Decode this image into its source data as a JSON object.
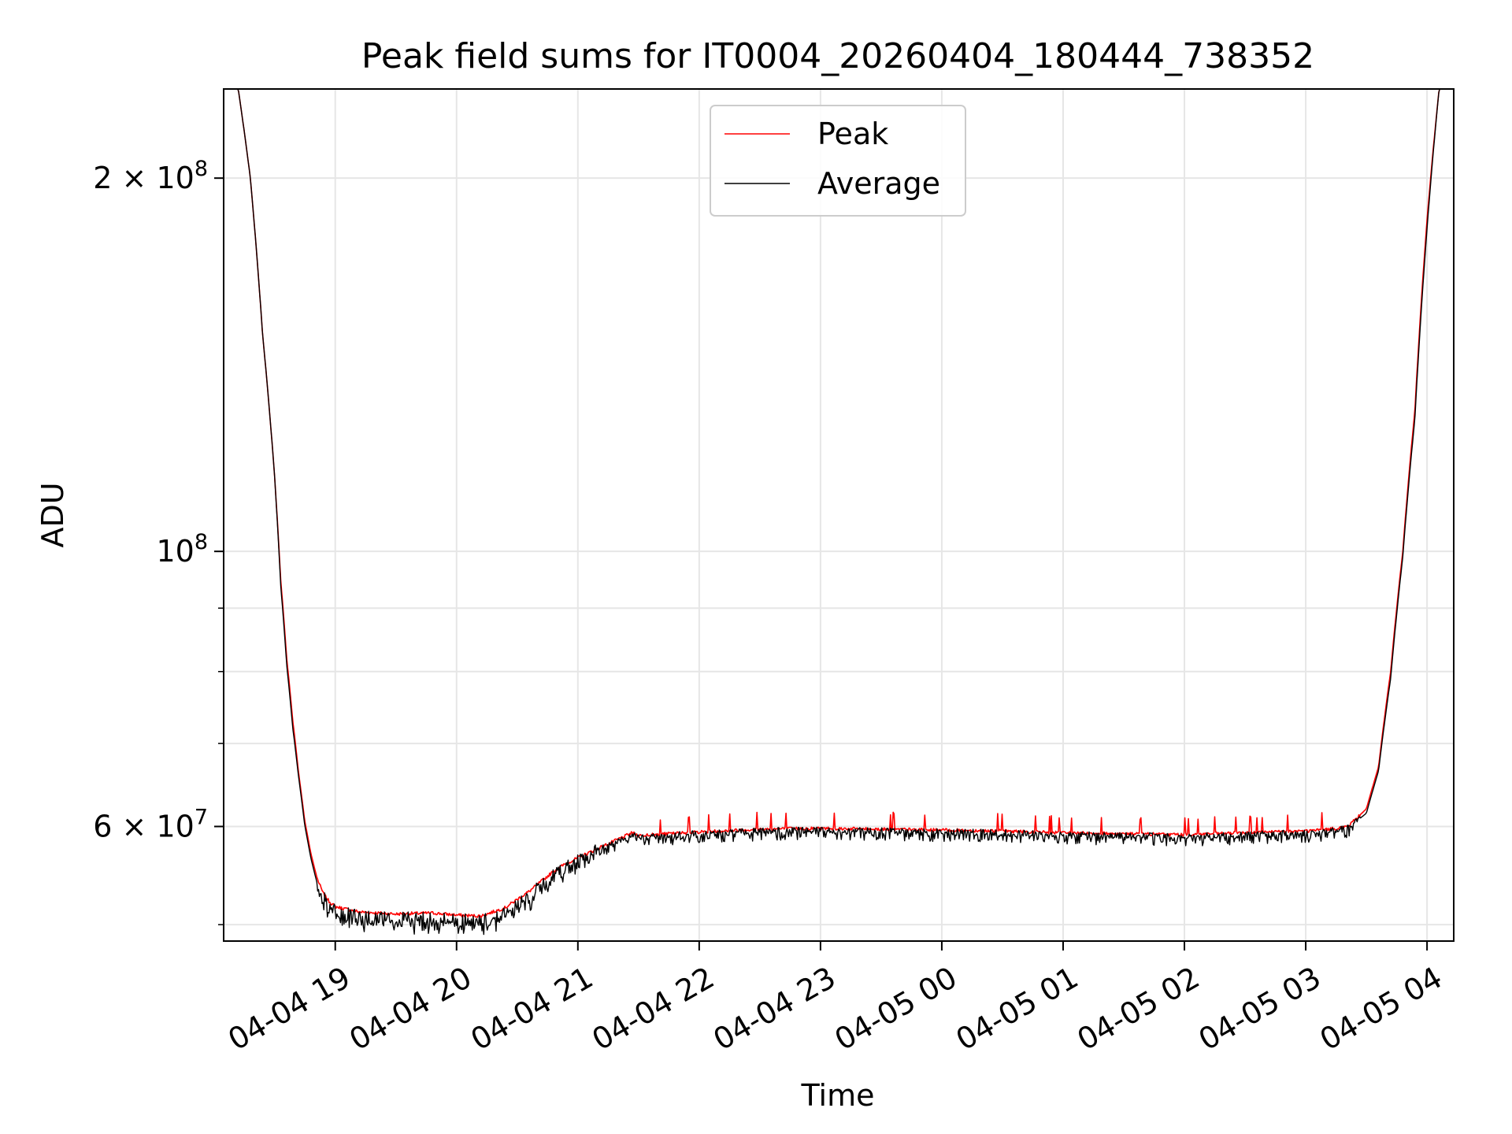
{
  "chart_data": {
    "type": "line",
    "title": "Peak field sums for IT0004_20260404_180444_738352",
    "xlabel": "Time",
    "ylabel": "ADU",
    "yscale": "log",
    "xlim_hours": [
      18.08,
      28.22
    ],
    "ylim": [
      48500000,
      236000000
    ],
    "grid": true,
    "legend": {
      "position": "top-center",
      "entries": [
        {
          "label": "Peak",
          "color": "#ff0000"
        },
        {
          "label": "Average",
          "color": "#000000"
        }
      ]
    },
    "x_ticks": [
      {
        "hour": 19,
        "label": "04-04 19"
      },
      {
        "hour": 20,
        "label": "04-04 20"
      },
      {
        "hour": 21,
        "label": "04-04 21"
      },
      {
        "hour": 22,
        "label": "04-04 22"
      },
      {
        "hour": 23,
        "label": "04-04 23"
      },
      {
        "hour": 24,
        "label": "04-05 00"
      },
      {
        "hour": 25,
        "label": "04-05 01"
      },
      {
        "hour": 26,
        "label": "04-05 02"
      },
      {
        "hour": 27,
        "label": "04-05 03"
      },
      {
        "hour": 28,
        "label": "04-05 04"
      }
    ],
    "y_major_ticks": [
      {
        "value": 60000000,
        "mantissa": "6",
        "base": "10",
        "exponent": "7"
      },
      {
        "value": 100000000,
        "mantissa": "",
        "base": "10",
        "exponent": "8"
      },
      {
        "value": 200000000,
        "mantissa": "2",
        "base": "10",
        "exponent": "8"
      }
    ],
    "y_minor_ticks": [
      50000000,
      70000000,
      80000000,
      90000000
    ],
    "series": [
      {
        "name": "Peak",
        "color": "#ff0000",
        "x": [
          18.08,
          18.2,
          18.3,
          18.4,
          18.5,
          18.55,
          18.6,
          18.65,
          18.7,
          18.75,
          18.8,
          18.85,
          18.9,
          18.95,
          19.0,
          19.2,
          19.5,
          19.8,
          20.0,
          20.2,
          20.4,
          20.6,
          20.8,
          20.9,
          21.0,
          21.2,
          21.45,
          21.5,
          22.0,
          22.5,
          23.0,
          23.5,
          24.0,
          24.5,
          25.0,
          25.5,
          26.0,
          26.5,
          27.0,
          27.2,
          27.35,
          27.5,
          27.6,
          27.7,
          27.8,
          27.9,
          28.0,
          28.1,
          28.22
        ],
        "y": [
          236000000,
          236000000,
          200000000,
          150000000,
          115000000,
          95000000,
          82000000,
          73000000,
          66000000,
          60500000,
          57000000,
          54500000,
          53000000,
          52200000,
          51700000,
          51200000,
          51000000,
          51100000,
          50900000,
          50800000,
          51600000,
          53200000,
          55200000,
          56000000,
          56600000,
          57800000,
          59300000,
          59000000,
          59400000,
          59700000,
          59800000,
          59700000,
          59600000,
          59500000,
          59300000,
          59200000,
          59100000,
          59300000,
          59500000,
          59700000,
          60000000,
          62000000,
          67000000,
          80000000,
          100000000,
          130000000,
          185000000,
          236000000,
          236000000
        ]
      },
      {
        "name": "Average",
        "color": "#000000",
        "x": [
          18.08,
          18.2,
          18.3,
          18.4,
          18.5,
          18.55,
          18.6,
          18.65,
          18.7,
          18.75,
          18.8,
          18.85,
          18.9,
          18.95,
          19.0,
          19.2,
          19.5,
          19.8,
          20.0,
          20.2,
          20.4,
          20.6,
          20.8,
          20.9,
          21.0,
          21.2,
          21.45,
          21.5,
          22.0,
          22.5,
          23.0,
          23.5,
          24.0,
          24.5,
          25.0,
          25.5,
          26.0,
          26.5,
          27.0,
          27.2,
          27.35,
          27.5,
          27.6,
          27.7,
          27.8,
          27.9,
          28.0,
          28.1,
          28.22
        ],
        "y": [
          236000000,
          236000000,
          200000000,
          150000000,
          115000000,
          94000000,
          81000000,
          72000000,
          65500000,
          60000000,
          56500000,
          54000000,
          52500000,
          51600000,
          51100000,
          50600000,
          50400000,
          50500000,
          50300000,
          50200000,
          51000000,
          52600000,
          54700000,
          55700000,
          56300000,
          57600000,
          59000000,
          58800000,
          59200000,
          59500000,
          59600000,
          59500000,
          59400000,
          59300000,
          59100000,
          59000000,
          58900000,
          59100000,
          59300000,
          59500000,
          59800000,
          61500000,
          66500000,
          79000000,
          99000000,
          128000000,
          182000000,
          236000000,
          236000000
        ]
      }
    ]
  }
}
